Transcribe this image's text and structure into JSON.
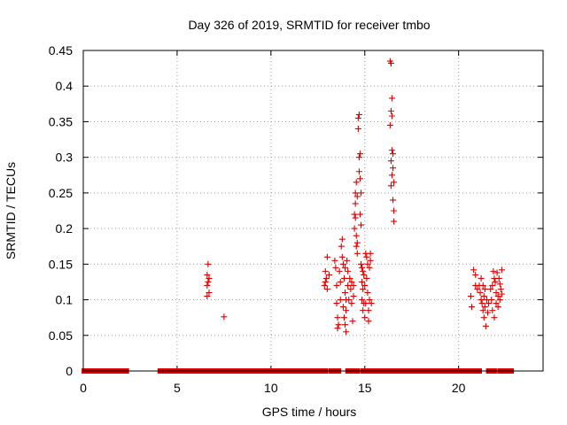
{
  "chart_data": {
    "type": "scatter",
    "title": "Day 326 of 2019, SRMTID for receiver tmbo",
    "xlabel": "GPS time / hours",
    "ylabel": "SRMTID / TECUs",
    "xlim": [
      0,
      24.5
    ],
    "ylim": [
      0,
      0.45
    ],
    "xticks": [
      0,
      5,
      10,
      15,
      20
    ],
    "yticks": [
      0,
      0.05,
      0.1,
      0.15,
      0.2,
      0.25,
      0.3,
      0.35,
      0.4,
      0.45
    ],
    "xtick_labels": [
      "0",
      "5",
      "10",
      "15",
      "20"
    ],
    "ytick_labels": [
      "0",
      "0.05",
      "0.1",
      "0.15",
      "0.2",
      "0.25",
      "0.3",
      "0.35",
      "0.4",
      "0.45"
    ],
    "grid": true,
    "marker": "+",
    "color": "#dd0000",
    "zero_segments": [
      [
        0.05,
        2.3
      ],
      [
        4.1,
        10.6
      ],
      [
        10.7,
        12.9
      ],
      [
        13.2,
        13.6
      ],
      [
        14.1,
        14.6
      ],
      [
        14.9,
        15.2
      ],
      [
        15.3,
        20.6
      ],
      [
        20.7,
        21.1
      ],
      [
        21.6,
        21.9
      ],
      [
        22.2,
        22.8
      ]
    ],
    "points": [
      [
        6.65,
        0.15
      ],
      [
        6.6,
        0.135
      ],
      [
        6.7,
        0.13
      ],
      [
        6.65,
        0.125
      ],
      [
        6.6,
        0.12
      ],
      [
        6.7,
        0.11
      ],
      [
        6.6,
        0.105
      ],
      [
        7.5,
        0.076
      ],
      [
        12.85,
        0.12
      ],
      [
        12.9,
        0.125
      ],
      [
        12.95,
        0.13
      ],
      [
        13.0,
        0.115
      ],
      [
        12.9,
        0.14
      ],
      [
        13.0,
        0.16
      ],
      [
        13.1,
        0.135
      ],
      [
        13.4,
        0.155
      ],
      [
        13.45,
        0.145
      ],
      [
        13.5,
        0.12
      ],
      [
        13.5,
        0.095
      ],
      [
        13.55,
        0.075
      ],
      [
        13.6,
        0.065
      ],
      [
        13.55,
        0.06
      ],
      [
        13.65,
        0.14
      ],
      [
        13.7,
        0.125
      ],
      [
        13.7,
        0.1
      ],
      [
        13.75,
        0.175
      ],
      [
        13.8,
        0.185
      ],
      [
        13.8,
        0.16
      ],
      [
        13.85,
        0.15
      ],
      [
        13.85,
        0.09
      ],
      [
        13.9,
        0.075
      ],
      [
        13.9,
        0.13
      ],
      [
        13.95,
        0.145
      ],
      [
        13.95,
        0.11
      ],
      [
        14.0,
        0.1
      ],
      [
        14.0,
        0.085
      ],
      [
        13.95,
        0.065
      ],
      [
        14.0,
        0.055
      ],
      [
        14.05,
        0.155
      ],
      [
        14.1,
        0.14
      ],
      [
        14.1,
        0.12
      ],
      [
        14.15,
        0.1
      ],
      [
        14.2,
        0.13
      ],
      [
        14.25,
        0.115
      ],
      [
        14.3,
        0.095
      ],
      [
        14.3,
        0.125
      ],
      [
        14.35,
        0.07
      ],
      [
        14.4,
        0.12
      ],
      [
        14.4,
        0.105
      ],
      [
        14.45,
        0.22
      ],
      [
        14.45,
        0.2
      ],
      [
        14.5,
        0.25
      ],
      [
        14.5,
        0.235
      ],
      [
        14.5,
        0.215
      ],
      [
        14.55,
        0.265
      ],
      [
        14.55,
        0.19
      ],
      [
        14.55,
        0.175
      ],
      [
        14.6,
        0.245
      ],
      [
        14.6,
        0.18
      ],
      [
        14.6,
        0.165
      ],
      [
        14.65,
        0.355
      ],
      [
        14.65,
        0.34
      ],
      [
        14.7,
        0.36
      ],
      [
        14.7,
        0.3
      ],
      [
        14.7,
        0.28
      ],
      [
        14.75,
        0.305
      ],
      [
        14.75,
        0.27
      ],
      [
        14.75,
        0.22
      ],
      [
        14.8,
        0.25
      ],
      [
        14.8,
        0.205
      ],
      [
        14.8,
        0.15
      ],
      [
        14.85,
        0.145
      ],
      [
        14.85,
        0.125
      ],
      [
        14.85,
        0.1
      ],
      [
        14.9,
        0.14
      ],
      [
        14.9,
        0.115
      ],
      [
        14.9,
        0.085
      ],
      [
        14.95,
        0.135
      ],
      [
        14.95,
        0.095
      ],
      [
        15.0,
        0.12
      ],
      [
        15.0,
        0.075
      ],
      [
        15.05,
        0.165
      ],
      [
        15.05,
        0.095
      ],
      [
        15.1,
        0.16
      ],
      [
        15.1,
        0.13
      ],
      [
        15.15,
        0.15
      ],
      [
        15.15,
        0.11
      ],
      [
        15.2,
        0.085
      ],
      [
        15.2,
        0.07
      ],
      [
        15.25,
        0.145
      ],
      [
        15.25,
        0.1
      ],
      [
        15.3,
        0.165
      ],
      [
        15.3,
        0.155
      ],
      [
        15.35,
        0.095
      ],
      [
        16.35,
        0.435
      ],
      [
        16.4,
        0.432
      ],
      [
        16.35,
        0.345
      ],
      [
        16.45,
        0.383
      ],
      [
        16.4,
        0.365
      ],
      [
        16.45,
        0.358
      ],
      [
        16.45,
        0.31
      ],
      [
        16.5,
        0.305
      ],
      [
        16.4,
        0.295
      ],
      [
        16.5,
        0.285
      ],
      [
        16.45,
        0.275
      ],
      [
        16.4,
        0.26
      ],
      [
        16.55,
        0.265
      ],
      [
        16.5,
        0.24
      ],
      [
        16.55,
        0.225
      ],
      [
        16.55,
        0.21
      ],
      [
        20.65,
        0.105
      ],
      [
        20.7,
        0.09
      ],
      [
        20.8,
        0.142
      ],
      [
        20.9,
        0.135
      ],
      [
        20.9,
        0.12
      ],
      [
        21.0,
        0.115
      ],
      [
        21.1,
        0.12
      ],
      [
        21.15,
        0.11
      ],
      [
        21.2,
        0.13
      ],
      [
        21.2,
        0.1
      ],
      [
        21.25,
        0.095
      ],
      [
        21.3,
        0.12
      ],
      [
        21.3,
        0.085
      ],
      [
        21.35,
        0.105
      ],
      [
        21.35,
        0.075
      ],
      [
        21.4,
        0.115
      ],
      [
        21.4,
        0.09
      ],
      [
        21.45,
        0.063
      ],
      [
        21.5,
        0.1
      ],
      [
        21.55,
        0.082
      ],
      [
        21.6,
        0.095
      ],
      [
        21.7,
        0.115
      ],
      [
        21.75,
        0.1
      ],
      [
        21.8,
        0.12
      ],
      [
        21.8,
        0.085
      ],
      [
        21.85,
        0.14
      ],
      [
        21.9,
        0.13
      ],
      [
        21.9,
        0.075
      ],
      [
        21.95,
        0.125
      ],
      [
        22.0,
        0.11
      ],
      [
        22.0,
        0.095
      ],
      [
        22.05,
        0.138
      ],
      [
        22.1,
        0.105
      ],
      [
        22.1,
        0.09
      ],
      [
        22.15,
        0.13
      ],
      [
        22.2,
        0.122
      ],
      [
        22.2,
        0.1
      ],
      [
        22.25,
        0.115
      ],
      [
        22.3,
        0.142
      ],
      [
        22.3,
        0.108
      ]
    ]
  }
}
